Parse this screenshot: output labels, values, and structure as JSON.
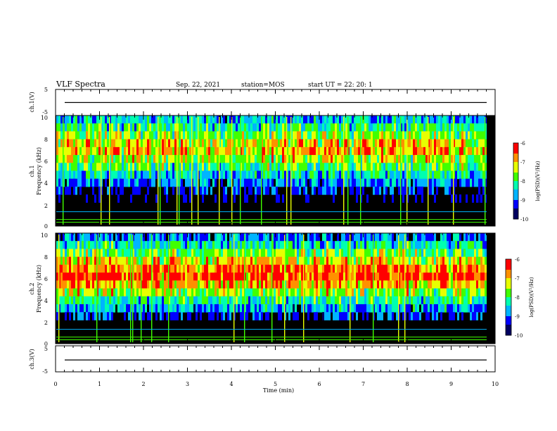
{
  "header": {
    "title": "VLF Spectra",
    "date": "Sep. 22, 2021",
    "station": "station=MOS",
    "start": "start  UT =   22: 20: 1"
  },
  "colors": {
    "scale": [
      "#000060",
      "#0000ff",
      "#00b4ff",
      "#00ffb0",
      "#40ff00",
      "#e8ff00",
      "#ff9000",
      "#ff0000",
      "#ffffff"
    ],
    "trace": "#000000"
  },
  "chart_data": [
    {
      "type": "line",
      "name": "ch1-waveform",
      "ylabel": "ch.1(V)",
      "ylim": [
        -5,
        5
      ],
      "yticks": [
        "5",
        "-5"
      ],
      "x": [
        0,
        10
      ],
      "y": [
        0,
        0
      ]
    },
    {
      "type": "heatmap",
      "name": "ch1-spectrogram",
      "ylabel": "ch.1\nFrequency  (kHz)",
      "ylim": [
        0,
        10
      ],
      "yticks": [
        "0",
        "2",
        "4",
        "6",
        "8",
        "10"
      ],
      "band_center_khz": 7,
      "colorbar": {
        "label": "log(PSD)(V²/Hz)",
        "range": [
          -10,
          -6
        ],
        "ticks": [
          "-6",
          "-7",
          "-8",
          "-9",
          "-10"
        ]
      }
    },
    {
      "type": "heatmap",
      "name": "ch2-spectrogram",
      "ylabel": "ch.2\nFrequency  (kHz)",
      "ylim": [
        0,
        10
      ],
      "yticks": [
        "0",
        "2",
        "4",
        "6",
        "8",
        "10"
      ],
      "band_center_khz": 6.3,
      "colorbar": {
        "label": "log(PSD)(V²/Hz)",
        "range": [
          -10,
          -6
        ],
        "ticks": [
          "-6",
          "-7",
          "-8",
          "-9",
          "-10"
        ]
      }
    },
    {
      "type": "line",
      "name": "ch3-waveform",
      "ylabel": "ch.3(V)",
      "ylim": [
        -5,
        5
      ],
      "yticks": [
        "5",
        "-5"
      ],
      "x": [
        0,
        10
      ],
      "y": [
        -0.5,
        -0.5
      ]
    }
  ],
  "xaxis": {
    "label": "Time  (min)",
    "range": [
      0,
      10
    ],
    "ticks": [
      "0",
      "1",
      "2",
      "3",
      "4",
      "5",
      "6",
      "7",
      "8",
      "9",
      "10"
    ]
  }
}
